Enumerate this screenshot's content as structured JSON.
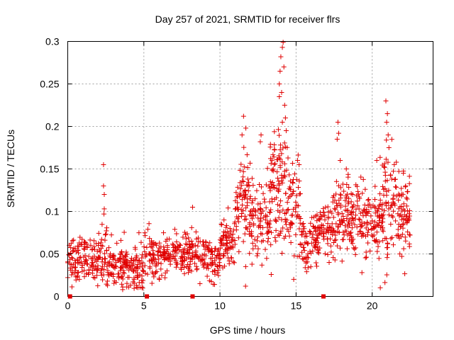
{
  "chart_data": {
    "type": "scatter",
    "title": "Day 257 of 2021, SRMTID for receiver flrs",
    "xlabel": "GPS time / hours",
    "ylabel": "SRMTID / TECUs",
    "xlim": [
      0,
      24
    ],
    "ylim": [
      0,
      0.3
    ],
    "x_ticks": [
      0,
      5,
      10,
      15,
      20
    ],
    "x_tick_labels": [
      "0",
      "5",
      "10",
      "15",
      "20"
    ],
    "y_ticks": [
      0,
      0.05,
      0.1,
      0.15,
      0.2,
      0.25,
      0.3
    ],
    "y_tick_labels": [
      "0",
      "0.05",
      "0.1",
      "0.15",
      "0.2",
      "0.25",
      "0.3"
    ],
    "grid": true,
    "legend": "none",
    "marker": "plus",
    "color": "#e00000",
    "segments": [
      {
        "x0": 0.0,
        "x1": 0.8,
        "mean": 0.045,
        "spread": 0.014,
        "count": 55
      },
      {
        "x0": 0.8,
        "x1": 2.0,
        "mean": 0.042,
        "spread": 0.013,
        "count": 70
      },
      {
        "x0": 2.0,
        "x1": 2.6,
        "mean": 0.05,
        "spread": 0.016,
        "count": 40
      },
      {
        "x0": 2.6,
        "x1": 3.8,
        "mean": 0.038,
        "spread": 0.013,
        "count": 80
      },
      {
        "x0": 3.8,
        "x1": 5.0,
        "mean": 0.033,
        "spread": 0.011,
        "count": 80
      },
      {
        "x0": 5.0,
        "x1": 6.5,
        "mean": 0.047,
        "spread": 0.012,
        "count": 90
      },
      {
        "x0": 6.5,
        "x1": 8.0,
        "mean": 0.052,
        "spread": 0.012,
        "count": 90
      },
      {
        "x0": 8.0,
        "x1": 9.3,
        "mean": 0.048,
        "spread": 0.011,
        "count": 75
      },
      {
        "x0": 9.3,
        "x1": 10.0,
        "mean": 0.042,
        "spread": 0.011,
        "count": 45
      },
      {
        "x0": 10.0,
        "x1": 11.0,
        "mean": 0.065,
        "spread": 0.014,
        "count": 70
      },
      {
        "x0": 11.0,
        "x1": 12.0,
        "mean": 0.1,
        "spread": 0.028,
        "count": 80
      },
      {
        "x0": 12.0,
        "x1": 13.3,
        "mean": 0.09,
        "spread": 0.025,
        "count": 85
      },
      {
        "x0": 13.3,
        "x1": 14.3,
        "mean": 0.125,
        "spread": 0.04,
        "count": 90
      },
      {
        "x0": 14.3,
        "x1": 15.3,
        "mean": 0.105,
        "spread": 0.03,
        "count": 70
      },
      {
        "x0": 15.3,
        "x1": 16.5,
        "mean": 0.065,
        "spread": 0.016,
        "count": 80
      },
      {
        "x0": 16.5,
        "x1": 17.5,
        "mean": 0.08,
        "spread": 0.018,
        "count": 70
      },
      {
        "x0": 17.5,
        "x1": 18.5,
        "mean": 0.095,
        "spread": 0.022,
        "count": 75
      },
      {
        "x0": 18.5,
        "x1": 19.5,
        "mean": 0.088,
        "spread": 0.02,
        "count": 70
      },
      {
        "x0": 19.5,
        "x1": 20.5,
        "mean": 0.09,
        "spread": 0.022,
        "count": 70
      },
      {
        "x0": 20.5,
        "x1": 21.5,
        "mean": 0.11,
        "spread": 0.03,
        "count": 80
      },
      {
        "x0": 21.5,
        "x1": 22.5,
        "mean": 0.1,
        "spread": 0.025,
        "count": 75
      }
    ],
    "peaks": [
      {
        "x": 2.35,
        "y": 0.155
      },
      {
        "x": 2.35,
        "y": 0.13
      },
      {
        "x": 2.4,
        "y": 0.12
      },
      {
        "x": 2.4,
        "y": 0.103
      },
      {
        "x": 2.38,
        "y": 0.097
      },
      {
        "x": 8.2,
        "y": 0.105
      },
      {
        "x": 11.55,
        "y": 0.212
      },
      {
        "x": 11.7,
        "y": 0.198
      },
      {
        "x": 11.45,
        "y": 0.19
      },
      {
        "x": 12.7,
        "y": 0.19
      },
      {
        "x": 12.65,
        "y": 0.182
      },
      {
        "x": 13.9,
        "y": 0.25
      },
      {
        "x": 13.95,
        "y": 0.265
      },
      {
        "x": 14.0,
        "y": 0.282
      },
      {
        "x": 14.1,
        "y": 0.293
      },
      {
        "x": 14.15,
        "y": 0.299
      },
      {
        "x": 14.2,
        "y": 0.27
      },
      {
        "x": 14.05,
        "y": 0.24
      },
      {
        "x": 14.25,
        "y": 0.225
      },
      {
        "x": 14.3,
        "y": 0.21
      },
      {
        "x": 13.9,
        "y": 0.235
      },
      {
        "x": 14.35,
        "y": 0.195
      },
      {
        "x": 14.1,
        "y": 0.205
      },
      {
        "x": 15.1,
        "y": 0.16
      },
      {
        "x": 15.2,
        "y": 0.155
      },
      {
        "x": 17.75,
        "y": 0.205
      },
      {
        "x": 17.8,
        "y": 0.192
      },
      {
        "x": 17.7,
        "y": 0.185
      },
      {
        "x": 20.9,
        "y": 0.23
      },
      {
        "x": 21.0,
        "y": 0.215
      },
      {
        "x": 20.95,
        "y": 0.205
      },
      {
        "x": 21.05,
        "y": 0.19
      },
      {
        "x": 21.1,
        "y": 0.175
      },
      {
        "x": 20.3,
        "y": 0.16
      },
      {
        "x": 22.05,
        "y": 0.145
      },
      {
        "x": 22.2,
        "y": 0.13
      },
      {
        "x": 17.9,
        "y": 0.16
      },
      {
        "x": 18.3,
        "y": 0.15
      }
    ],
    "zero_markers": [
      0.15,
      5.2,
      8.2,
      16.8
    ]
  }
}
